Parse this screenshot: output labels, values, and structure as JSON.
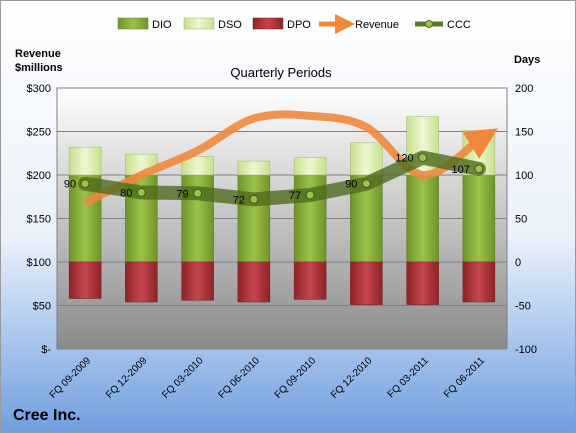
{
  "chart_data": {
    "type": "bar",
    "title": "Quarterly Periods",
    "left_axis_label_line1": "Revenue",
    "left_axis_label_line2": "$millions",
    "right_axis_label": "Days",
    "company": "Cree Inc.",
    "categories": [
      "FQ 09-2009",
      "FQ 12-2009",
      "FQ 03-2010",
      "FQ 06-2010",
      "FQ 09-2010",
      "FQ 12-2010",
      "FQ 03-2011",
      "FQ 06-2011"
    ],
    "left_axis": {
      "min": 0,
      "max": 300,
      "step": 50,
      "tick_labels": [
        "$-",
        "$50",
        "$100",
        "$150",
        "$200",
        "$250",
        "$300"
      ]
    },
    "right_axis": {
      "min": -100,
      "max": 200,
      "step": 50,
      "tick_labels": [
        "-100",
        "-50",
        "0",
        "50",
        "100",
        "150",
        "200"
      ]
    },
    "grid": true,
    "legend_position": "top",
    "series": [
      {
        "name": "DIO",
        "kind": "bar",
        "axis": "right",
        "color": "#8db33a",
        "values": [
          100,
          100,
          100,
          100,
          100,
          100,
          100,
          100
        ]
      },
      {
        "name": "DSO",
        "kind": "bar",
        "axis": "right",
        "color": "#dceeb0",
        "values": [
          32,
          24,
          21,
          16,
          20,
          37,
          67,
          51
        ]
      },
      {
        "name": "DPO",
        "kind": "bar",
        "axis": "right",
        "color": "#b2333a",
        "values": [
          -42,
          -46,
          -44,
          -46,
          -43,
          -49,
          -49,
          -46
        ]
      },
      {
        "name": "Revenue",
        "kind": "line",
        "axis": "left",
        "color": "#f0883c",
        "values": [
          168,
          200,
          228,
          265,
          268,
          255,
          200,
          240
        ]
      },
      {
        "name": "CCC",
        "kind": "line",
        "axis": "right",
        "color": "#5d7a2a",
        "values": [
          90,
          80,
          79,
          72,
          77,
          90,
          120,
          107
        ],
        "labels": [
          "90",
          "80",
          "79",
          "72",
          "77",
          "90",
          "120",
          "107"
        ]
      }
    ]
  }
}
